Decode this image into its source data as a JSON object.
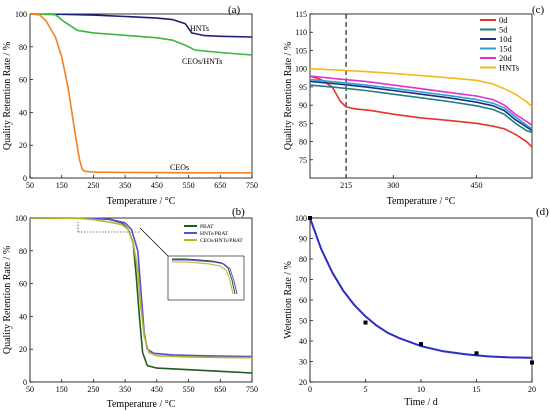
{
  "figure": {
    "panel_labels": [
      "(a)",
      "(b)",
      "(c)",
      "(d)"
    ]
  },
  "chart_data": [
    {
      "panel": "(a)",
      "type": "line",
      "xlabel": "Temperature / °C",
      "ylabel": "Quality Retention Rate / %",
      "xlim": [
        50,
        750
      ],
      "ylim": [
        0,
        100
      ],
      "xticks": [
        50,
        150,
        250,
        350,
        450,
        550,
        650,
        750
      ],
      "yticks": [
        0,
        20,
        40,
        60,
        80,
        100
      ],
      "annotations": [
        "HNTs",
        "CEOs/HNTs",
        "CEOs"
      ],
      "series": [
        {
          "name": "HNTs",
          "color": "#1c1f7a",
          "x": [
            50,
            150,
            250,
            350,
            450,
            500,
            540,
            560,
            600,
            650,
            750
          ],
          "y": [
            100,
            99.8,
            99.3,
            98.5,
            97.5,
            96.6,
            94,
            88.5,
            86.8,
            86.4,
            86
          ]
        },
        {
          "name": "CEOs/HNTs",
          "color": "#3cb83c",
          "x": [
            50,
            130,
            160,
            200,
            250,
            350,
            450,
            500,
            540,
            570,
            650,
            750
          ],
          "y": [
            100,
            99.6,
            95,
            90,
            88.5,
            87,
            85.5,
            84,
            81,
            78,
            76.5,
            75
          ]
        },
        {
          "name": "CEOs",
          "color": "#f58220",
          "x": [
            50,
            80,
            100,
            130,
            150,
            170,
            190,
            205,
            215,
            225,
            250,
            350,
            450,
            550,
            750
          ],
          "y": [
            100,
            99.5,
            96,
            86,
            74,
            55,
            30,
            12,
            5,
            4,
            3.6,
            3.4,
            3.3,
            3.2,
            3.2
          ]
        }
      ]
    },
    {
      "panel": "(b)",
      "type": "line",
      "xlabel": "Temperature / °C",
      "ylabel": "Quality Retention Rate / %",
      "xlim": [
        50,
        750
      ],
      "ylim": [
        0,
        100
      ],
      "xticks": [
        50,
        150,
        250,
        350,
        450,
        550,
        650,
        750
      ],
      "yticks": [
        0,
        20,
        40,
        60,
        80,
        100
      ],
      "series": [
        {
          "name": "PBAT",
          "color": "#1e5c1e",
          "x": [
            50,
            250,
            300,
            340,
            360,
            375,
            385,
            395,
            405,
            420,
            450,
            550,
            650,
            750
          ],
          "y": [
            100,
            99.8,
            99.2,
            97,
            93,
            85,
            65,
            40,
            18,
            10,
            8.5,
            7.5,
            6.5,
            5.5
          ]
        },
        {
          "name": "HNTs/PBAT",
          "color": "#5b4bd6",
          "x": [
            50,
            250,
            300,
            350,
            370,
            390,
            400,
            410,
            420,
            440,
            500,
            600,
            750
          ],
          "y": [
            100,
            99.8,
            99.3,
            97,
            93,
            80,
            55,
            30,
            20,
            17.5,
            16.5,
            16,
            15.5
          ]
        },
        {
          "name": "CEOs/HNTs/PBAT",
          "color": "#b5b52a",
          "x": [
            50,
            200,
            250,
            300,
            340,
            360,
            375,
            390,
            400,
            410,
            425,
            450,
            550,
            650,
            750
          ],
          "y": [
            100,
            99.8,
            99,
            97.5,
            96,
            93,
            85,
            68,
            45,
            28,
            18,
            16,
            15.3,
            15,
            14.8
          ]
        }
      ]
    },
    {
      "panel": "(c)",
      "type": "line",
      "xlabel": "Temperature / °C",
      "ylabel": "Quality Retention Rate / %",
      "xlim": [
        150,
        550
      ],
      "ylim": [
        70,
        115
      ],
      "xticks": [
        215,
        300,
        450
      ],
      "yticks": [
        75,
        80,
        85,
        90,
        95,
        100,
        105,
        110,
        115
      ],
      "vline_x": 215,
      "series": [
        {
          "name": "0d",
          "color": "#e8322a",
          "x": [
            150,
            170,
            190,
            205,
            215,
            230,
            260,
            300,
            350,
            400,
            450,
            480,
            500,
            520,
            540,
            550
          ],
          "y": [
            98,
            97,
            95,
            91,
            89.5,
            89,
            88.5,
            87.5,
            86.5,
            85.8,
            85,
            84.2,
            83.5,
            82,
            80,
            78.5
          ]
        },
        {
          "name": "5d",
          "color": "#1f7f82",
          "x": [
            150,
            200,
            250,
            300,
            350,
            400,
            450,
            480,
            500,
            520,
            540,
            550
          ],
          "y": [
            95.5,
            94.8,
            94,
            93,
            92,
            91,
            89.8,
            88.8,
            87.5,
            85,
            83,
            82.5
          ]
        },
        {
          "name": "10d",
          "color": "#1a2f80",
          "x": [
            150,
            200,
            250,
            300,
            350,
            400,
            450,
            480,
            500,
            520,
            540,
            550
          ],
          "y": [
            96.5,
            95.8,
            95,
            94,
            93,
            92,
            90.8,
            89.8,
            88.5,
            86,
            84,
            83
          ]
        },
        {
          "name": "15d",
          "color": "#2ea0cc",
          "x": [
            150,
            200,
            250,
            300,
            350,
            400,
            450,
            480,
            500,
            520,
            540,
            550
          ],
          "y": [
            97,
            96.3,
            95.5,
            94.6,
            93.6,
            92.6,
            91.5,
            90.5,
            89.2,
            86.8,
            84.5,
            83.5
          ]
        },
        {
          "name": "20d",
          "color": "#e030d0",
          "x": [
            150,
            200,
            250,
            300,
            350,
            400,
            450,
            480,
            500,
            520,
            540,
            550
          ],
          "y": [
            98,
            97.2,
            96.5,
            95.5,
            94.5,
            93.5,
            92.5,
            91.5,
            90,
            87.5,
            85.5,
            84.5
          ]
        },
        {
          "name": "HNTs",
          "color": "#f5b81c",
          "x": [
            150,
            200,
            250,
            300,
            350,
            400,
            450,
            480,
            500,
            520,
            540,
            550
          ],
          "y": [
            100,
            99.6,
            99.2,
            98.7,
            98.1,
            97.5,
            96.8,
            95.8,
            94.5,
            93,
            91,
            89.5
          ]
        }
      ]
    },
    {
      "panel": "(d)",
      "type": "scatter",
      "xlabel": "Time / d",
      "ylabel": "Wetention Rate / %",
      "xlim": [
        0,
        20
      ],
      "ylim": [
        20,
        100
      ],
      "xticks": [
        0,
        5,
        10,
        15,
        20
      ],
      "yticks": [
        20,
        30,
        40,
        50,
        60,
        70,
        80,
        90,
        100
      ],
      "points": {
        "x": [
          0,
          5,
          10,
          15,
          20
        ],
        "y": [
          100,
          49,
          38.5,
          34,
          29.5
        ]
      },
      "fit": {
        "x": [
          0,
          1,
          2,
          3,
          4,
          5,
          6,
          7,
          8,
          10,
          12,
          14,
          16,
          18,
          20
        ],
        "y": [
          100,
          85,
          73.5,
          64.5,
          57.5,
          52,
          47.5,
          44,
          41.5,
          37.5,
          35,
          33.5,
          32.5,
          32,
          31.8
        ],
        "color": "#2c2cc8"
      }
    }
  ]
}
